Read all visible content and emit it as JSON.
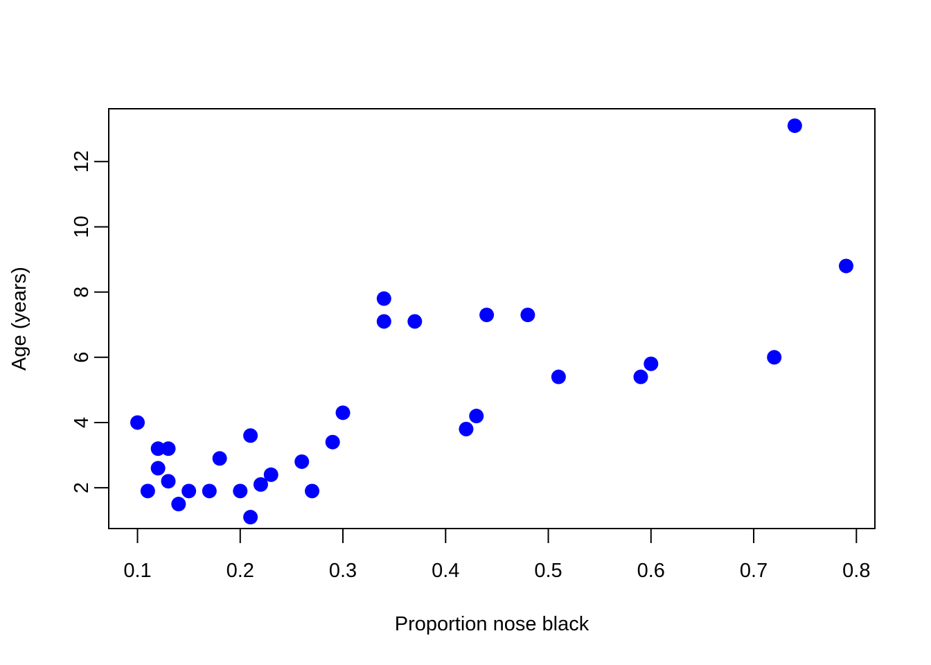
{
  "chart_data": {
    "type": "scatter",
    "title": "",
    "xlabel": "Proportion nose black",
    "ylabel": "Age (years)",
    "xlim": [
      0.072,
      0.818
    ],
    "ylim": [
      0.75,
      13.62
    ],
    "x_ticks": [
      0.1,
      0.2,
      0.3,
      0.4,
      0.5,
      0.6,
      0.7,
      0.8
    ],
    "x_tick_labels": [
      "0.1",
      "0.2",
      "0.3",
      "0.4",
      "0.5",
      "0.6",
      "0.7",
      "0.8"
    ],
    "y_ticks": [
      2,
      4,
      6,
      8,
      10,
      12
    ],
    "y_tick_labels": [
      "2",
      "4",
      "6",
      "8",
      "10",
      "12"
    ],
    "grid": false,
    "legend": null,
    "point_color": "#0000ff",
    "series": [
      {
        "x": [
          0.1,
          0.11,
          0.12,
          0.12,
          0.13,
          0.13,
          0.14,
          0.15,
          0.17,
          0.18,
          0.2,
          0.21,
          0.21,
          0.22,
          0.23,
          0.26,
          0.27,
          0.29,
          0.3,
          0.34,
          0.34,
          0.37,
          0.42,
          0.43,
          0.44,
          0.48,
          0.51,
          0.59,
          0.6,
          0.72,
          0.74,
          0.79
        ],
        "y": [
          4.0,
          1.9,
          3.2,
          2.6,
          3.2,
          2.2,
          1.5,
          1.9,
          1.9,
          2.9,
          1.9,
          1.1,
          3.6,
          2.1,
          2.4,
          2.8,
          1.9,
          3.4,
          4.3,
          7.8,
          7.1,
          7.1,
          3.8,
          4.2,
          7.3,
          7.3,
          5.4,
          5.4,
          5.8,
          6.0,
          13.1,
          8.8
        ]
      }
    ]
  }
}
